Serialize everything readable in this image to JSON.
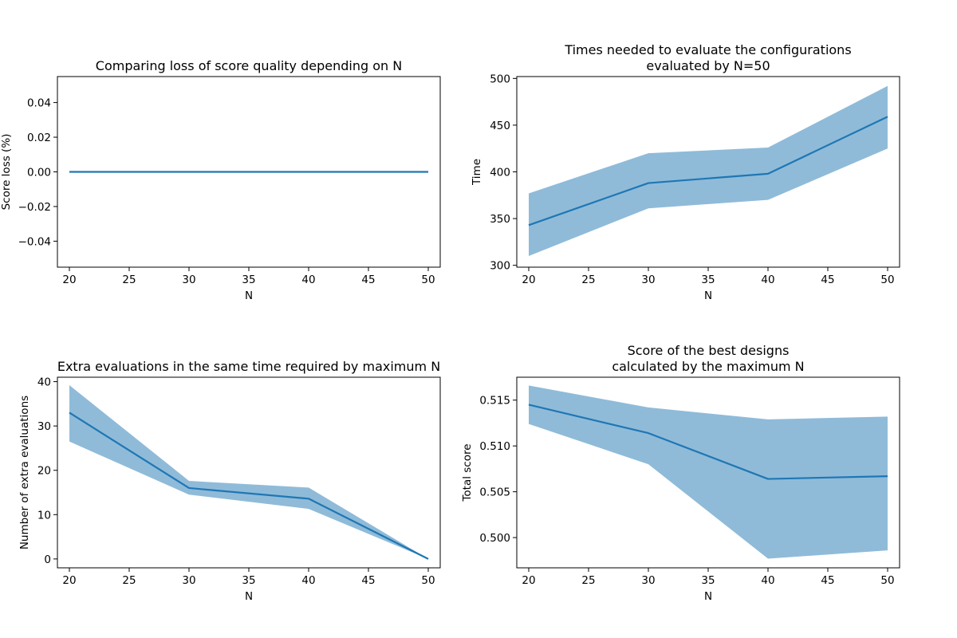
{
  "colors": {
    "line": "#1f77b4",
    "band": "#1f77b4",
    "band_opacity": 0.5,
    "axis": "#000000"
  },
  "chart_data": [
    {
      "type": "line",
      "title": [
        "Comparing loss of score quality depending on N"
      ],
      "xlabel": "N",
      "ylabel": "Score loss (%)",
      "x": [
        20,
        30,
        40,
        50
      ],
      "xlim": [
        19,
        51
      ],
      "ylim": [
        -0.055,
        0.055
      ],
      "xticks": [
        20,
        25,
        30,
        35,
        40,
        45,
        50
      ],
      "yticks": [
        -0.04,
        -0.02,
        0.0,
        0.02,
        0.04
      ],
      "ytick_labels": [
        "−0.04",
        "−0.02",
        "0.00",
        "0.02",
        "0.04"
      ],
      "series": [
        {
          "values": [
            0,
            0,
            0,
            0
          ],
          "lower": [
            0,
            0,
            0,
            0
          ],
          "upper": [
            0,
            0,
            0,
            0
          ]
        }
      ],
      "grid": false,
      "legend": "none"
    },
    {
      "type": "line",
      "title": [
        "Times needed to evaluate the configurations",
        "evaluated by N=50"
      ],
      "xlabel": "N",
      "ylabel": "Time",
      "x": [
        20,
        30,
        40,
        50
      ],
      "xlim": [
        19,
        51
      ],
      "ylim": [
        298,
        502
      ],
      "xticks": [
        20,
        25,
        30,
        35,
        40,
        45,
        50
      ],
      "yticks": [
        300,
        350,
        400,
        450,
        500
      ],
      "ytick_labels": [
        "300",
        "350",
        "400",
        "450",
        "500"
      ],
      "series": [
        {
          "values": [
            343,
            388,
            398,
            459
          ],
          "lower": [
            310,
            361,
            370,
            425
          ],
          "upper": [
            377,
            420,
            426,
            492
          ]
        }
      ],
      "grid": false,
      "legend": "none"
    },
    {
      "type": "line",
      "title": [
        "Extra evaluations in the same time required by maximum N"
      ],
      "xlabel": "N",
      "ylabel": "Number of extra evaluations",
      "x": [
        20,
        30,
        40,
        50
      ],
      "xlim": [
        19,
        51
      ],
      "ylim": [
        -2,
        41
      ],
      "xticks": [
        20,
        25,
        30,
        35,
        40,
        45,
        50
      ],
      "yticks": [
        0,
        10,
        20,
        30,
        40
      ],
      "ytick_labels": [
        "0",
        "10",
        "20",
        "30",
        "40"
      ],
      "series": [
        {
          "values": [
            33,
            16,
            13.6,
            0
          ],
          "lower": [
            26.5,
            14.5,
            11.3,
            0
          ],
          "upper": [
            39.2,
            17.6,
            16.1,
            0
          ]
        }
      ],
      "grid": false,
      "legend": "none"
    },
    {
      "type": "line",
      "title": [
        "Score of the best designs",
        "calculated by the maximum N"
      ],
      "xlabel": "N",
      "ylabel": "Total score",
      "x": [
        20,
        30,
        40,
        50
      ],
      "xlim": [
        19,
        51
      ],
      "ylim": [
        0.4967,
        0.5175
      ],
      "xticks": [
        20,
        25,
        30,
        35,
        40,
        45,
        50
      ],
      "yticks": [
        0.5,
        0.505,
        0.51,
        0.515
      ],
      "ytick_labels": [
        "0.500",
        "0.505",
        "0.510",
        "0.515"
      ],
      "series": [
        {
          "values": [
            0.5145,
            0.5114,
            0.5064,
            0.5067
          ],
          "lower": [
            0.5124,
            0.508,
            0.4977,
            0.4986
          ],
          "upper": [
            0.5166,
            0.5142,
            0.5129,
            0.5132
          ]
        }
      ],
      "grid": false,
      "legend": "none"
    }
  ]
}
